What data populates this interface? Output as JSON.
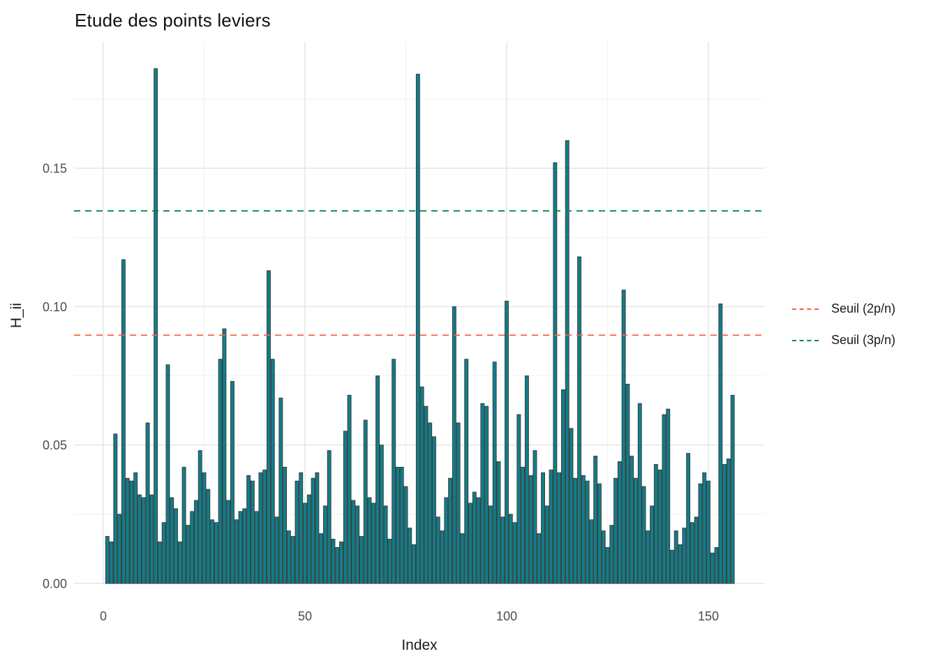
{
  "title": "Etude des points leviers",
  "chart_data": {
    "type": "bar",
    "title": "Etude des points leviers",
    "xlabel": "Index",
    "ylabel": "H_ii",
    "x_ticks": [
      0,
      50,
      100,
      150
    ],
    "y_ticks": [
      {
        "label": "0.00",
        "value": 0
      },
      {
        "label": "0.05",
        "value": 0.05
      },
      {
        "label": "0.10",
        "value": 0.1
      },
      {
        "label": "0.15",
        "value": 0.15
      }
    ],
    "x_minor_gridlines": [
      25,
      75,
      125
    ],
    "y_minor_gridlines": [
      0.025,
      0.075,
      0.125,
      0.175
    ],
    "ylim": [
      0,
      0.1955
    ],
    "xlim": [
      -7.3,
      164
    ],
    "grid": true,
    "legend_position": "right",
    "bar_color": "#107e8a",
    "bar_border_color": "#3d3d3d",
    "background_color": "#ffffff",
    "major_grid_color": "#e4e4e4",
    "minor_grid_color": "#f0f0f0",
    "axis_text_color": "#4d4d4d",
    "x_start_index": 1,
    "values": [
      0.017,
      0.015,
      0.054,
      0.025,
      0.117,
      0.038,
      0.037,
      0.04,
      0.032,
      0.031,
      0.058,
      0.032,
      0.186,
      0.015,
      0.022,
      0.079,
      0.031,
      0.027,
      0.015,
      0.042,
      0.021,
      0.026,
      0.03,
      0.048,
      0.04,
      0.034,
      0.023,
      0.022,
      0.081,
      0.092,
      0.03,
      0.073,
      0.023,
      0.026,
      0.027,
      0.039,
      0.037,
      0.026,
      0.04,
      0.041,
      0.113,
      0.081,
      0.024,
      0.067,
      0.042,
      0.019,
      0.017,
      0.037,
      0.04,
      0.029,
      0.032,
      0.038,
      0.04,
      0.018,
      0.028,
      0.048,
      0.016,
      0.013,
      0.015,
      0.055,
      0.068,
      0.03,
      0.028,
      0.017,
      0.059,
      0.031,
      0.029,
      0.075,
      0.05,
      0.028,
      0.016,
      0.081,
      0.042,
      0.042,
      0.035,
      0.02,
      0.014,
      0.184,
      0.071,
      0.064,
      0.058,
      0.053,
      0.024,
      0.019,
      0.031,
      0.038,
      0.1,
      0.058,
      0.018,
      0.081,
      0.029,
      0.033,
      0.031,
      0.065,
      0.064,
      0.028,
      0.08,
      0.044,
      0.024,
      0.102,
      0.025,
      0.022,
      0.061,
      0.042,
      0.075,
      0.039,
      0.048,
      0.018,
      0.04,
      0.028,
      0.041,
      0.152,
      0.04,
      0.07,
      0.16,
      0.056,
      0.038,
      0.118,
      0.039,
      0.037,
      0.023,
      0.046,
      0.036,
      0.019,
      0.013,
      0.021,
      0.038,
      0.044,
      0.106,
      0.072,
      0.046,
      0.038,
      0.065,
      0.035,
      0.019,
      0.028,
      0.043,
      0.041,
      0.061,
      0.063,
      0.012,
      0.019,
      0.014,
      0.02,
      0.047,
      0.022,
      0.024,
      0.036,
      0.04,
      0.037,
      0.011,
      0.013,
      0.101,
      0.043,
      0.045,
      0.068
    ],
    "hlines": [
      {
        "label": "Seuil (2p/n)",
        "value": 0.0897,
        "color": "#f85e44",
        "style": "dashed"
      },
      {
        "label": "Seuil (3p/n)",
        "value": 0.1346,
        "color": "#008b45",
        "style": "dashed"
      }
    ]
  },
  "legend": {
    "items": [
      {
        "label": "Seuil (2p/n)",
        "color": "#f85e44"
      },
      {
        "label": "Seuil (3p/n)",
        "color": "#008b45"
      }
    ]
  }
}
